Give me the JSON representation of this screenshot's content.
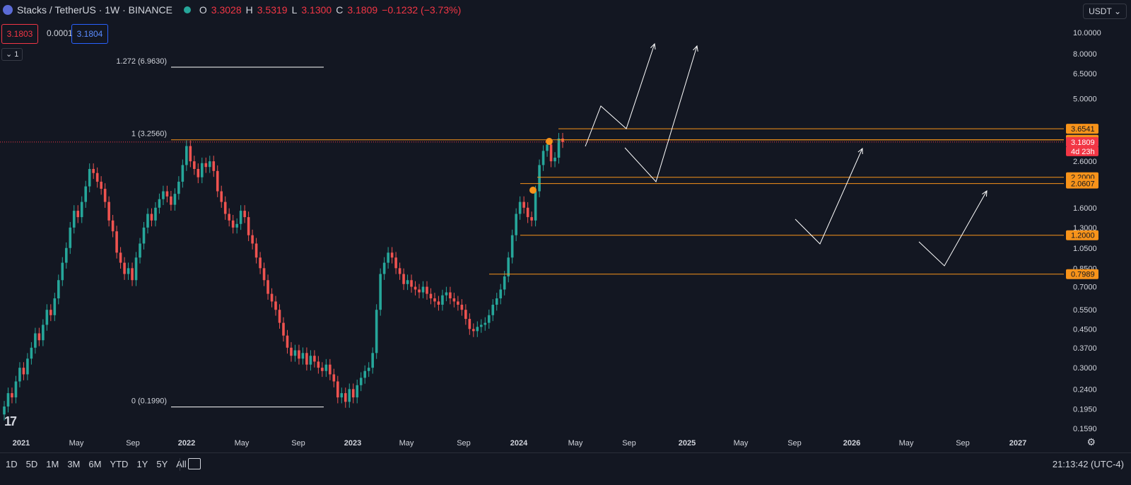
{
  "legend": {
    "symbol": "Stacks / TetherUS · 1W · BINANCE",
    "o_label": "O",
    "o_val": "3.3028",
    "h_label": "H",
    "h_val": "3.5319",
    "l_label": "L",
    "l_val": "3.1300",
    "c_label": "C",
    "c_val": "3.1809",
    "change": "−0.1232 (−3.73%)"
  },
  "trade": {
    "sell": "3.1803",
    "spread": "0.0001",
    "buy": "3.1804"
  },
  "collapse_label": "1",
  "currency_selector": "USDT",
  "timeframes": [
    "1D",
    "5D",
    "1M",
    "3M",
    "6M",
    "YTD",
    "1Y",
    "5Y",
    "All"
  ],
  "clock": "21:13:42 (UTC-4)",
  "colors": {
    "up": "#26a69a",
    "down": "#ef5350",
    "level": "#f7931a",
    "bg": "#131722",
    "text": "#d1d4dc"
  },
  "chart_data": {
    "type": "candlestick",
    "y_scale": "log",
    "x_ticks": [
      "2021",
      "May",
      "Sep",
      "2022",
      "May",
      "Sep",
      "2023",
      "May",
      "Sep",
      "2024",
      "May",
      "Sep",
      "2025",
      "May",
      "Sep",
      "2026",
      "May",
      "Sep",
      "2027"
    ],
    "y_ticks": [
      "10.0000",
      "8.0000",
      "6.5000",
      "5.0000",
      "2.6000",
      "1.6000",
      "1.3000",
      "1.0500",
      "0.8500",
      "0.7000",
      "0.5500",
      "0.4500",
      "0.3700",
      "0.3000",
      "0.2400",
      "0.1950",
      "0.1590"
    ],
    "price_labels": [
      {
        "text": "3.6541",
        "kind": "level"
      },
      {
        "text": "3.2560",
        "kind": "level"
      },
      {
        "text": "3.1809",
        "kind": "current"
      },
      {
        "text": "4d 23h",
        "kind": "current"
      },
      {
        "text": "2.2000",
        "kind": "level"
      },
      {
        "text": "2.0607",
        "kind": "level"
      },
      {
        "text": "1.2000",
        "kind": "level"
      },
      {
        "text": "0.7989",
        "kind": "level"
      }
    ],
    "fib_levels": [
      {
        "label": "1.272 (6.9630)",
        "value": 6.963
      },
      {
        "label": "1 (3.2560)",
        "value": 3.256
      },
      {
        "label": "0 (0.1990)",
        "value": 0.199
      }
    ],
    "horizontal_levels": [
      3.6541,
      3.256,
      2.2,
      2.0607,
      1.2,
      0.7989
    ],
    "current_price": 3.1809,
    "candle_closes": [
      0.2,
      0.23,
      0.22,
      0.26,
      0.3,
      0.28,
      0.33,
      0.37,
      0.43,
      0.4,
      0.47,
      0.55,
      0.52,
      0.62,
      0.75,
      0.9,
      1.05,
      1.3,
      1.55,
      1.45,
      1.7,
      2.0,
      2.4,
      2.3,
      2.1,
      1.95,
      1.7,
      1.4,
      1.25,
      1.0,
      0.9,
      0.8,
      0.85,
      0.75,
      0.95,
      1.1,
      1.3,
      1.5,
      1.4,
      1.6,
      1.75,
      1.9,
      1.8,
      1.65,
      1.85,
      2.1,
      2.5,
      3.05,
      2.6,
      2.4,
      2.2,
      2.55,
      2.45,
      2.6,
      2.35,
      1.9,
      1.7,
      1.5,
      1.4,
      1.3,
      1.35,
      1.55,
      1.45,
      1.2,
      1.1,
      0.95,
      0.85,
      0.75,
      0.65,
      0.6,
      0.55,
      0.48,
      0.42,
      0.37,
      0.34,
      0.36,
      0.33,
      0.35,
      0.31,
      0.34,
      0.32,
      0.3,
      0.29,
      0.31,
      0.28,
      0.26,
      0.22,
      0.23,
      0.21,
      0.24,
      0.22,
      0.25,
      0.27,
      0.29,
      0.3,
      0.35,
      0.55,
      0.8,
      0.9,
      1.0,
      0.95,
      0.85,
      0.8,
      0.72,
      0.75,
      0.7,
      0.68,
      0.66,
      0.7,
      0.65,
      0.62,
      0.6,
      0.58,
      0.64,
      0.66,
      0.62,
      0.6,
      0.58,
      0.55,
      0.5,
      0.45,
      0.44,
      0.46,
      0.47,
      0.48,
      0.52,
      0.58,
      0.62,
      0.68,
      0.78,
      0.95,
      1.2,
      1.5,
      1.7,
      1.6,
      1.45,
      1.4,
      1.9,
      2.5,
      2.9,
      3.1,
      2.6,
      2.7,
      3.3,
      3.18
    ]
  }
}
